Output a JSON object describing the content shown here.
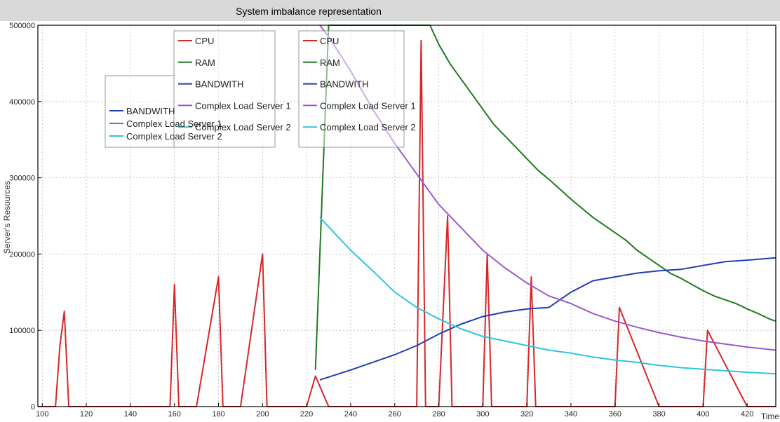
{
  "chart_data": {
    "type": "line",
    "title": "System imbalance representation",
    "xlabel": "Time",
    "ylabel": "Server's Resources",
    "xlim": [
      98,
      433
    ],
    "ylim": [
      0,
      500000
    ],
    "xticks": [
      100,
      120,
      140,
      160,
      180,
      200,
      220,
      240,
      260,
      280,
      300,
      320,
      340,
      360,
      380,
      400,
      420
    ],
    "yticks": [
      0,
      100000,
      200000,
      300000,
      400000,
      500000
    ],
    "grid": true,
    "colors": {
      "cpu": "#d62728",
      "ram": "#1f7a1f",
      "bandwidth": "#1f3fb4",
      "complex_load_server_1": "#9b59d0",
      "complex_load_server_2": "#2ec4dc"
    },
    "legends": [
      {
        "placement": "top-center",
        "entries": [
          "CPU",
          "RAM",
          "BANDWITH",
          "Complex Load Server 1",
          "Complex Load Server 2"
        ]
      },
      {
        "placement": "top-center-right",
        "entries": [
          "CPU",
          "RAM",
          "BANDWITH",
          "Complex Load Server 1",
          "Complex Load Server 2"
        ]
      },
      {
        "placement": "top-left",
        "entries": [
          "",
          "",
          "BANDWITH",
          "Complex Load Server 1",
          "Complex Load Server 2"
        ]
      }
    ],
    "series": [
      {
        "name": "CPU",
        "color_key": "cpu",
        "x": [
          98,
          106,
          108,
          110,
          112,
          130,
          140,
          158,
          160,
          162,
          170,
          180,
          182,
          190,
          200,
          202,
          220,
          224,
          230,
          240,
          260,
          270,
          272,
          274,
          278,
          280,
          284,
          286,
          300,
          302,
          304,
          320,
          322,
          324,
          340,
          360,
          362,
          380,
          400,
          402,
          420,
          433
        ],
        "y": [
          0,
          0,
          80000,
          125000,
          0,
          0,
          0,
          0,
          160000,
          0,
          0,
          170000,
          0,
          0,
          200000,
          0,
          0,
          40000,
          0,
          0,
          0,
          0,
          480000,
          0,
          0,
          0,
          250000,
          0,
          0,
          200000,
          0,
          0,
          170000,
          0,
          0,
          0,
          130000,
          0,
          0,
          100000,
          0,
          0
        ]
      },
      {
        "name": "RAM",
        "color_key": "ram",
        "x": [
          224,
          230,
          236,
          240,
          250,
          260,
          270,
          276,
          280,
          285,
          290,
          295,
          300,
          305,
          310,
          315,
          320,
          325,
          330,
          335,
          340,
          345,
          350,
          355,
          360,
          365,
          370,
          375,
          380,
          385,
          390,
          395,
          400,
          405,
          410,
          415,
          420,
          425,
          430,
          433
        ],
        "y": [
          48000,
          500000,
          500000,
          500000,
          500000,
          500000,
          500000,
          500000,
          475000,
          450000,
          430000,
          410000,
          390000,
          370000,
          355000,
          340000,
          325000,
          310000,
          298000,
          285000,
          272000,
          260000,
          248000,
          238000,
          228000,
          218000,
          205000,
          195000,
          185000,
          175000,
          168000,
          160000,
          152000,
          145000,
          140000,
          135000,
          128000,
          122000,
          115000,
          112000
        ]
      },
      {
        "name": "BANDWITH",
        "color_key": "bandwidth",
        "x": [
          226,
          240,
          250,
          260,
          270,
          280,
          290,
          300,
          310,
          320,
          330,
          340,
          350,
          360,
          370,
          380,
          390,
          400,
          410,
          420,
          433
        ],
        "y": [
          35000,
          48000,
          58000,
          68000,
          80000,
          95000,
          108000,
          118000,
          124000,
          128000,
          130000,
          150000,
          165000,
          170000,
          175000,
          178000,
          180000,
          185000,
          190000,
          192000,
          195000
        ]
      },
      {
        "name": "Complex Load Server 1",
        "color_key": "complex_load_server_1",
        "x": [
          226,
          230,
          240,
          250,
          260,
          270,
          280,
          290,
          300,
          310,
          320,
          330,
          340,
          350,
          360,
          370,
          380,
          390,
          400,
          410,
          420,
          433
        ],
        "y": [
          500000,
          485000,
          440000,
          390000,
          345000,
          305000,
          265000,
          235000,
          205000,
          182000,
          162000,
          145000,
          135000,
          122000,
          112000,
          104000,
          97000,
          91000,
          86000,
          82000,
          78000,
          74000
        ]
      },
      {
        "name": "Complex Load Server 2",
        "color_key": "complex_load_server_2",
        "x": [
          226,
          240,
          250,
          260,
          270,
          280,
          290,
          300,
          310,
          320,
          330,
          340,
          350,
          360,
          370,
          380,
          390,
          400,
          410,
          420,
          433
        ],
        "y": [
          248000,
          205000,
          178000,
          150000,
          130000,
          115000,
          102000,
          92000,
          86000,
          80000,
          74000,
          70000,
          65000,
          61000,
          58000,
          54000,
          51000,
          49000,
          47000,
          45000,
          43000
        ]
      }
    ]
  }
}
